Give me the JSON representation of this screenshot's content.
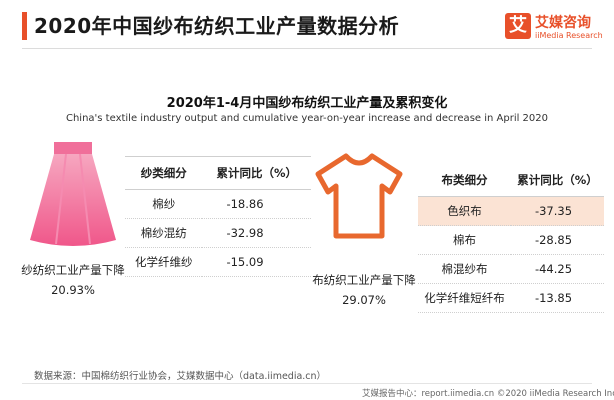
{
  "header": {
    "title": "2020年中国纱布纺织工业产量数据分析",
    "accent_color": "#e8502a",
    "logo": {
      "mark": "艾",
      "cn": "艾媒咨询",
      "en": "iiMedia Research"
    }
  },
  "chart_data": {
    "type": "table",
    "title": "2020年1-4月中国纱布纺织工业产量及累积变化",
    "subtitle": "China's textile industry output and cumulative year-on-year increase and decrease in April 2020",
    "yarn": {
      "icon": "skirt-icon",
      "color": "#f06f9a",
      "caption": "纱纺织工业产量下降",
      "total": "20.93%",
      "headers": [
        "纱类细分",
        "累计同比（%）"
      ],
      "rows": [
        {
          "name": "棉纱",
          "value": "-18.86"
        },
        {
          "name": "棉纱混纺",
          "value": "-32.98"
        },
        {
          "name": "化学纤维纱",
          "value": "-15.09"
        }
      ]
    },
    "cloth": {
      "icon": "tshirt-icon",
      "color": "#e8682e",
      "highlight_color": "#fbe3d4",
      "caption": "布纺织工业产量下降",
      "total": "29.07%",
      "headers": [
        "布类细分",
        "累计同比（%）"
      ],
      "rows": [
        {
          "name": "色织布",
          "value": "-37.35"
        },
        {
          "name": "棉布",
          "value": "-28.85"
        },
        {
          "name": "棉混纱布",
          "value": "-44.25"
        },
        {
          "name": "化学纤维短纤布",
          "value": "-13.85"
        }
      ]
    }
  },
  "footer": {
    "source": "数据来源：中国棉纺织行业协会，艾媒数据中心（data.iimedia.cn）",
    "right": "艾媒报告中心：report.iimedia.cn  ©2020  iiMedia Research  Inc"
  }
}
